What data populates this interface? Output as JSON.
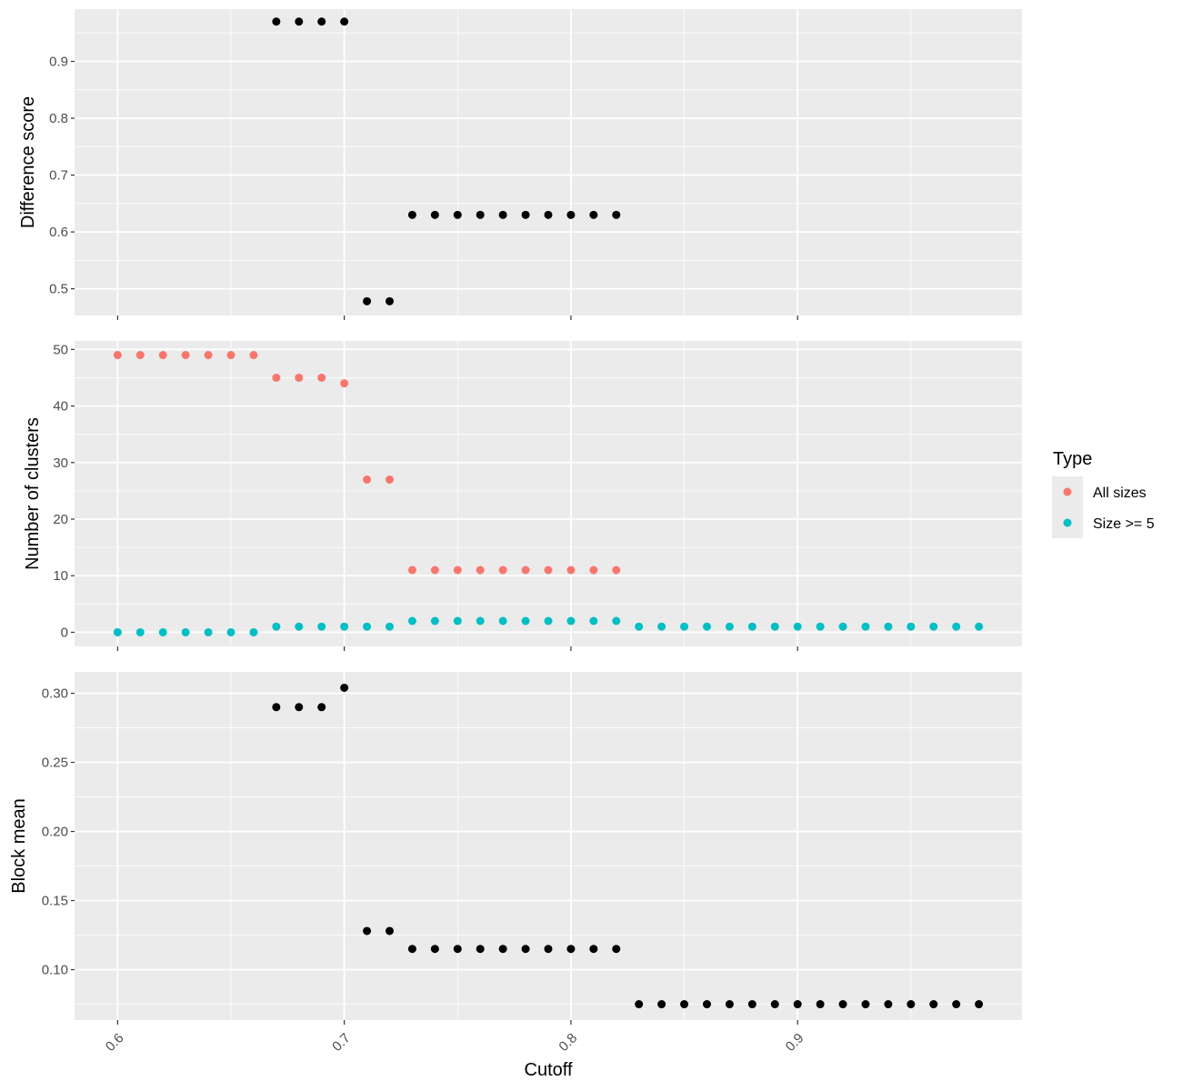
{
  "colors": {
    "panel_background": "#ebebeb",
    "grid": "#ffffff",
    "tick_text": "#4d4d4d",
    "tick_mark": "#333333",
    "point_black": "#000000",
    "all_sizes": "#f8766d",
    "size_ge_5": "#00bfc4"
  },
  "legend": {
    "title": "Type",
    "entries": [
      {
        "label": "All sizes",
        "color": "#f8766d"
      },
      {
        "label": "Size >= 5",
        "color": "#00bfc4"
      }
    ]
  },
  "chart_data": [
    {
      "type": "scatter",
      "ylabel": "Difference score",
      "xlabel": "",
      "xlim": [
        0.581,
        0.999
      ],
      "ylim": [
        0.453,
        0.992
      ],
      "yticks": [
        0.5,
        0.6,
        0.7,
        0.8,
        0.9
      ],
      "xticks": [
        0.6,
        0.7,
        0.8,
        0.9
      ],
      "grid": true,
      "series": [
        {
          "color": "#000000",
          "x": [
            0.67,
            0.68,
            0.69,
            0.7,
            0.71,
            0.72,
            0.73,
            0.74,
            0.75,
            0.76,
            0.77,
            0.78,
            0.79,
            0.8,
            0.81,
            0.82
          ],
          "y": [
            0.97,
            0.97,
            0.97,
            0.97,
            0.478,
            0.478,
            0.63,
            0.63,
            0.63,
            0.63,
            0.63,
            0.63,
            0.63,
            0.63,
            0.63,
            0.63
          ]
        }
      ]
    },
    {
      "type": "scatter",
      "ylabel": "Number of clusters",
      "xlabel": "",
      "xlim": [
        0.581,
        0.999
      ],
      "ylim": [
        -2.5,
        51.5
      ],
      "yticks": [
        0,
        10,
        20,
        30,
        40,
        50
      ],
      "xticks": [
        0.6,
        0.7,
        0.8,
        0.9
      ],
      "grid": true,
      "legend_position": "right",
      "series": [
        {
          "name": "All sizes",
          "color": "#f8766d",
          "x": [
            0.6,
            0.61,
            0.62,
            0.63,
            0.64,
            0.65,
            0.66,
            0.67,
            0.68,
            0.69,
            0.7,
            0.71,
            0.72,
            0.73,
            0.74,
            0.75,
            0.76,
            0.77,
            0.78,
            0.79,
            0.8,
            0.81,
            0.82
          ],
          "y": [
            49,
            49,
            49,
            49,
            49,
            49,
            49,
            45,
            45,
            45,
            44,
            27,
            27,
            11,
            11,
            11,
            11,
            11,
            11,
            11,
            11,
            11,
            11
          ]
        },
        {
          "name": "Size >= 5",
          "color": "#00bfc4",
          "x": [
            0.6,
            0.61,
            0.62,
            0.63,
            0.64,
            0.65,
            0.66,
            0.67,
            0.68,
            0.69,
            0.7,
            0.71,
            0.72,
            0.73,
            0.74,
            0.75,
            0.76,
            0.77,
            0.78,
            0.79,
            0.8,
            0.81,
            0.82,
            0.83,
            0.84,
            0.85,
            0.86,
            0.87,
            0.88,
            0.89,
            0.9,
            0.91,
            0.92,
            0.93,
            0.94,
            0.95,
            0.96,
            0.97,
            0.98
          ],
          "y": [
            0,
            0,
            0,
            0,
            0,
            0,
            0,
            1,
            1,
            1,
            1,
            1,
            1,
            2,
            2,
            2,
            2,
            2,
            2,
            2,
            2,
            2,
            2,
            1,
            1,
            1,
            1,
            1,
            1,
            1,
            1,
            1,
            1,
            1,
            1,
            1,
            1,
            1,
            1
          ]
        }
      ]
    },
    {
      "type": "scatter",
      "ylabel": "Block mean",
      "xlabel": "Cutoff",
      "xlim": [
        0.581,
        0.999
      ],
      "ylim": [
        0.0635,
        0.3155
      ],
      "yticks": [
        0.1,
        0.15,
        0.2,
        0.25,
        0.3
      ],
      "xticks": [
        0.6,
        0.7,
        0.8,
        0.9
      ],
      "grid": true,
      "series": [
        {
          "color": "#000000",
          "x": [
            0.67,
            0.68,
            0.69,
            0.7,
            0.71,
            0.72,
            0.73,
            0.74,
            0.75,
            0.76,
            0.77,
            0.78,
            0.79,
            0.8,
            0.81,
            0.82,
            0.83,
            0.84,
            0.85,
            0.86,
            0.87,
            0.88,
            0.89,
            0.9,
            0.91,
            0.92,
            0.93,
            0.94,
            0.95,
            0.96,
            0.97,
            0.98
          ],
          "y": [
            0.29,
            0.29,
            0.29,
            0.304,
            0.128,
            0.128,
            0.115,
            0.115,
            0.115,
            0.115,
            0.115,
            0.115,
            0.115,
            0.115,
            0.115,
            0.115,
            0.075,
            0.075,
            0.075,
            0.075,
            0.075,
            0.075,
            0.075,
            0.075,
            0.075,
            0.075,
            0.075,
            0.075,
            0.075,
            0.075,
            0.075,
            0.075
          ]
        }
      ]
    }
  ]
}
